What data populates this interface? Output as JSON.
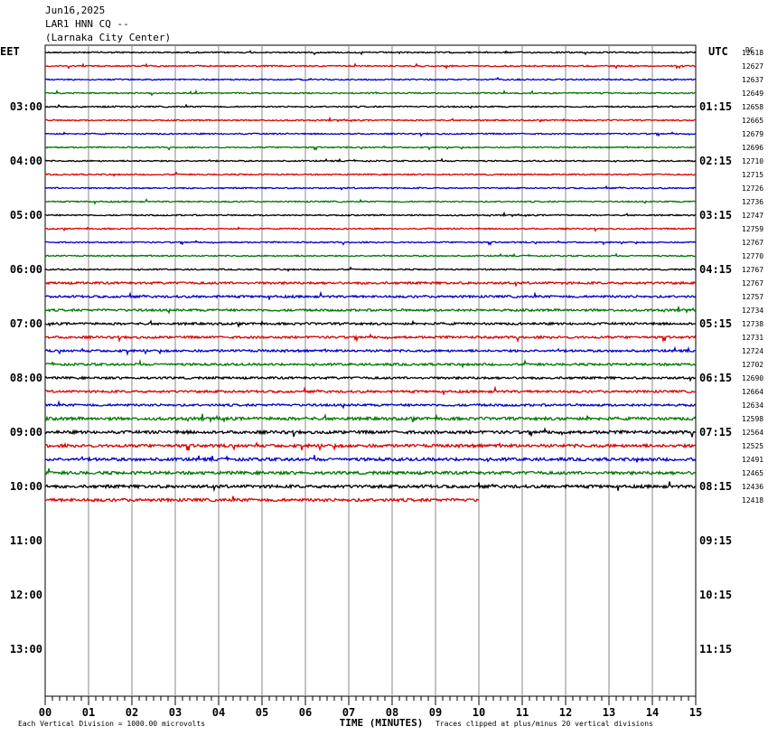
{
  "header": {
    "date": "Jun16,2025",
    "station": "LAR1 HNN CQ --",
    "location": "(Larnaka City Center)"
  },
  "chart_data": {
    "type": "line",
    "left_zone": "EET",
    "right_zone": "UTC",
    "dc_label": "DC",
    "hours_left": [
      "03:00",
      "04:00",
      "05:00",
      "06:00",
      "07:00",
      "08:00",
      "09:00",
      "10:00",
      "11:00",
      "12:00",
      "13:00"
    ],
    "hours_right": [
      "01:15",
      "02:15",
      "03:15",
      "04:15",
      "05:15",
      "06:15",
      "07:15",
      "08:15",
      "09:15",
      "10:15",
      "11:15"
    ],
    "first_hour_row": 4,
    "rows_per_hour": 4,
    "total_rows": 48,
    "dc_offsets": [
      12618,
      12627,
      12637,
      12649,
      12658,
      12665,
      12679,
      12696,
      12710,
      12715,
      12726,
      12736,
      12747,
      12759,
      12767,
      12770,
      12767,
      12767,
      12757,
      12734,
      12738,
      12731,
      12724,
      12702,
      12690,
      12664,
      12634,
      12598,
      12564,
      12525,
      12491,
      12465,
      12436,
      12418
    ],
    "last_trace_end_minute": 10,
    "trace_colors": [
      "#000000",
      "#dd0000",
      "#0000cc",
      "#007700"
    ],
    "x_ticks": [
      "00",
      "01",
      "02",
      "03",
      "04",
      "05",
      "06",
      "07",
      "08",
      "09",
      "10",
      "11",
      "12",
      "13",
      "14",
      "15"
    ],
    "xlim": [
      0,
      15
    ],
    "xlabel": "TIME (MINUTES)",
    "footer_left": "Each Vertical Division = 1000.00 microvolts",
    "footer_right": "Traces clipped at plus/minus 20 vertical divisions"
  }
}
